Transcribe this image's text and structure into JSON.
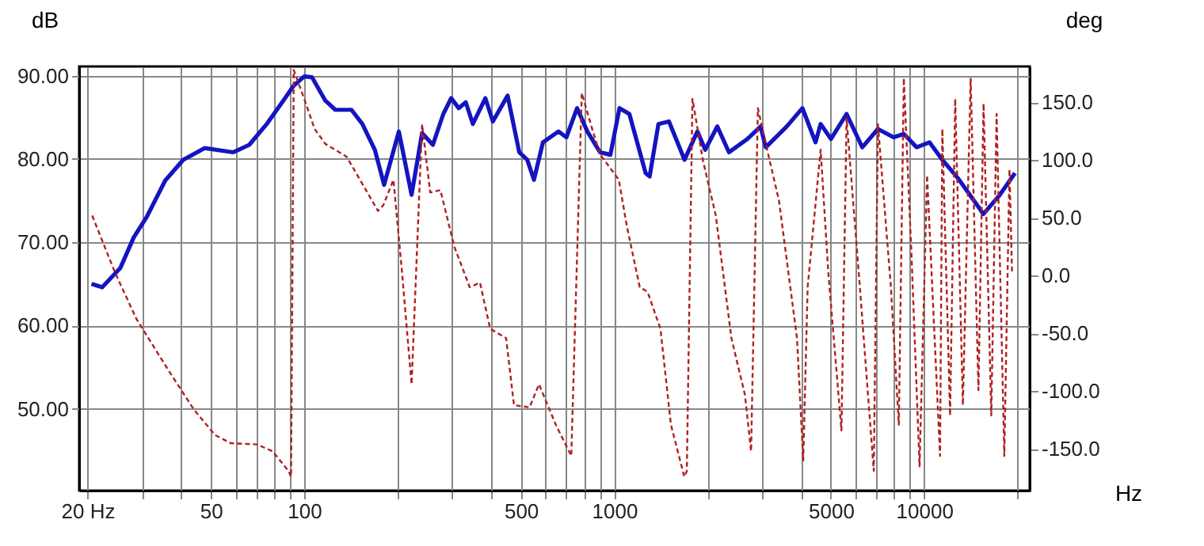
{
  "chart_data": {
    "type": "line",
    "xlabel": "Hz",
    "ylabel": "dB",
    "y2label": "deg",
    "log": "x",
    "grid": true,
    "marker": "none",
    "xlim": [
      18.8,
      21900
    ],
    "ylim": [
      40.2,
      91.1
    ],
    "y2lim": [
      -186,
      181
    ],
    "xticks": [
      {
        "value": 20,
        "label": "20 Hz"
      },
      {
        "value": 30,
        "label": null
      },
      {
        "value": 40,
        "label": null
      },
      50,
      {
        "value": 60,
        "label": null
      },
      {
        "value": 70,
        "label": null
      },
      {
        "value": 80,
        "label": null
      },
      {
        "value": 90,
        "label": null
      },
      100,
      {
        "value": 200,
        "label": null
      },
      {
        "value": 300,
        "label": null
      },
      {
        "value": 400,
        "label": null
      },
      500,
      {
        "value": 600,
        "label": null
      },
      {
        "value": 700,
        "label": null
      },
      {
        "value": 800,
        "label": null
      },
      {
        "value": 900,
        "label": null
      },
      1000,
      {
        "value": 2000,
        "label": null
      },
      {
        "value": 3000,
        "label": null
      },
      {
        "value": 4000,
        "label": null
      },
      5000,
      {
        "value": 6000,
        "label": null
      },
      {
        "value": 7000,
        "label": null
      },
      {
        "value": 8000,
        "label": null
      },
      {
        "value": 9000,
        "label": null
      },
      10000,
      {
        "value": 20000,
        "label": null
      }
    ],
    "yticks": [
      {
        "value": 50,
        "label": "50.00"
      },
      {
        "value": 60,
        "label": "60.00"
      },
      {
        "value": 70,
        "label": "70.00"
      },
      {
        "value": 80,
        "label": "80.00"
      },
      {
        "value": 90,
        "label": "90.00"
      }
    ],
    "y2ticks": [
      {
        "value": -150,
        "label": "-150.0"
      },
      {
        "value": -100,
        "label": "-100.0"
      },
      {
        "value": -50,
        "label": "-50.0"
      },
      {
        "value": 0,
        "label": "0.0"
      },
      {
        "value": 50,
        "label": "50.0"
      },
      {
        "value": 100,
        "label": "100.0"
      },
      {
        "value": 150,
        "label": "150.0"
      }
    ],
    "series": [
      {
        "color": "#1414c0",
        "line_style": "solid",
        "x": [
          20.6,
          22.3,
          25.5,
          28.2,
          31.1,
          35.6,
          40.7,
          47.7,
          59.1,
          66.5,
          76.1,
          85.6,
          92.5,
          100,
          106,
          117,
          126,
          142,
          154,
          169,
          181,
          202,
          222,
          240,
          260,
          281,
          298,
          315,
          332,
          350,
          384,
          406,
          453,
          494,
          524,
          551,
          589,
          661,
          701,
          759,
          819,
          900,
          972,
          1040,
          1119,
          1263,
          1301,
          1389,
          1502,
          1686,
          1855,
          1966,
          2151,
          2346,
          2689,
          2966,
          3083,
          3601,
          4048,
          4460,
          4634,
          5002,
          5618,
          6313,
          7092,
          7965,
          8596,
          9454,
          10397,
          11441,
          12840,
          15530,
          17460,
          19630
        ],
        "values": [
          65.0,
          64.6,
          66.9,
          70.6,
          73.1,
          77.4,
          79.9,
          81.3,
          80.8,
          81.7,
          84.3,
          87.0,
          88.8,
          89.9,
          89.8,
          87.0,
          85.9,
          85.9,
          84.2,
          81.1,
          76.9,
          83.3,
          75.7,
          83.1,
          81.7,
          85.4,
          87.3,
          86.1,
          86.8,
          84.2,
          87.3,
          84.5,
          87.6,
          80.8,
          79.9,
          77.5,
          82.0,
          83.3,
          82.6,
          86.1,
          83.3,
          80.8,
          80.5,
          86.1,
          85.4,
          78.3,
          77.9,
          84.2,
          84.5,
          79.9,
          83.3,
          81.1,
          83.9,
          80.8,
          82.4,
          83.9,
          81.4,
          83.9,
          86.1,
          82.0,
          84.2,
          82.4,
          85.4,
          81.4,
          83.6,
          82.6,
          83.0,
          81.4,
          82.0,
          79.9,
          77.7,
          73.4,
          75.6,
          78.3
        ]
      },
      {
        "axis": "y2",
        "color": "#b02020",
        "line_style": "dashed",
        "x": [
          20.7,
          24.5,
          28.7,
          36.3,
          44.1,
          51.6,
          58,
          70.4,
          79.1,
          89,
          90.7,
          92.5,
          100,
          108,
          117,
          137,
          173,
          180,
          194,
          206,
          222,
          240,
          255,
          275,
          305,
          342,
          369,
          398,
          448,
          475,
          533,
          572,
          648,
          727,
          786,
          849,
          900,
          1035,
          1098,
          1209,
          1281,
          1410,
          1524,
          1683,
          1715,
          1788,
          1932,
          2127,
          2388,
          2640,
          2764,
          2907,
          3083,
          3400,
          3887,
          4072,
          4207,
          4634,
          4904,
          5408,
          5618,
          6165,
          6876,
          7092,
          7809,
          8281,
          8596,
          9118,
          9661,
          10217,
          11250,
          11441,
          12120,
          12590,
          13330,
          14120,
          14960,
          15540,
          16460,
          17120,
          18130,
          18840,
          19200
        ],
        "values": [
          52,
          3,
          -37,
          -81,
          -116,
          -138,
          -145,
          -146,
          -152,
          -169,
          -174,
          178,
          153,
          127,
          114,
          103,
          56,
          61,
          83,
          8,
          -94,
          131,
          72,
          74,
          25,
          -10,
          -6,
          -46,
          -54,
          -112,
          -114,
          -94,
          -129,
          -156,
          158,
          127,
          105,
          83,
          43,
          -10,
          -14,
          -46,
          -129,
          -174,
          -169,
          153,
          100,
          52,
          -54,
          -103,
          -152,
          145,
          114,
          65,
          -54,
          -160,
          -10,
          109,
          3,
          -134,
          136,
          -1,
          -169,
          131,
          -10,
          -129,
          171,
          12,
          -165,
          87,
          -156,
          127,
          -121,
          153,
          -112,
          171,
          -99,
          149,
          -121,
          140,
          -156,
          92,
          3
        ]
      }
    ]
  }
}
